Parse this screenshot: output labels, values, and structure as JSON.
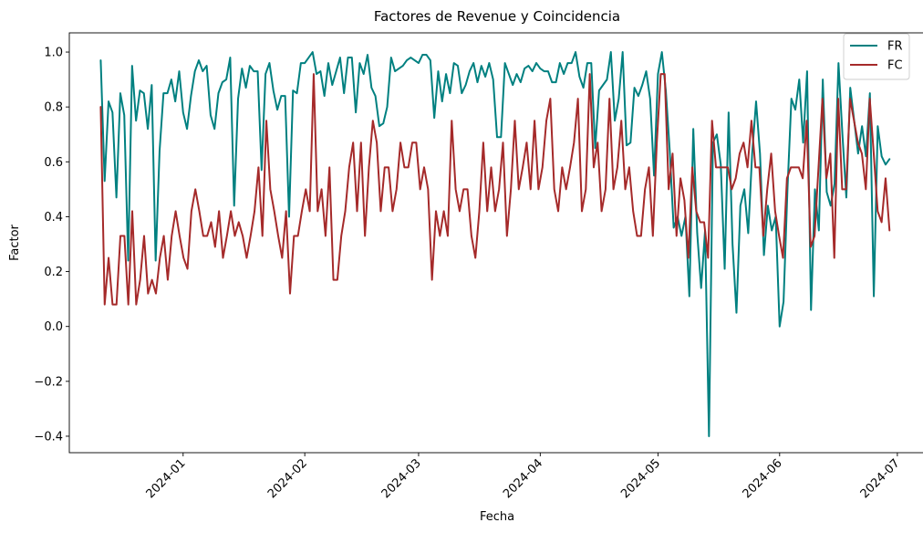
{
  "chart_data": {
    "type": "line",
    "title": "Factores de Revenue y Coincidencia",
    "xlabel": "Fecha",
    "ylabel": "Factor",
    "x_start": "2023-12-11",
    "x_end": "2024-06-29",
    "xlim": [
      "2023-12-03",
      "2024-07-08"
    ],
    "ylim": [
      -0.46,
      1.07
    ],
    "x_ticks": [
      "2024-01",
      "2024-02",
      "2024-03",
      "2024-04",
      "2024-05",
      "2024-06",
      "2024-07"
    ],
    "x_tick_dates": [
      "2024-01-01",
      "2024-02-01",
      "2024-03-01",
      "2024-04-01",
      "2024-05-01",
      "2024-06-01",
      "2024-07-01"
    ],
    "y_ticks": [
      -0.4,
      -0.2,
      0.0,
      0.2,
      0.4,
      0.6,
      0.8,
      1.0
    ],
    "y_tick_labels": [
      "−0.4",
      "−0.2",
      "0.0",
      "0.2",
      "0.4",
      "0.6",
      "0.8",
      "1.0"
    ],
    "grid": false,
    "legend_position": "top-right",
    "series": [
      {
        "name": "FR",
        "color": "#008080",
        "values": [
          0.97,
          0.53,
          0.82,
          0.78,
          0.47,
          0.85,
          0.77,
          0.24,
          0.95,
          0.75,
          0.86,
          0.85,
          0.72,
          0.88,
          0.24,
          0.64,
          0.85,
          0.85,
          0.9,
          0.82,
          0.93,
          0.78,
          0.72,
          0.84,
          0.93,
          0.97,
          0.93,
          0.95,
          0.77,
          0.72,
          0.85,
          0.89,
          0.9,
          0.98,
          0.44,
          0.83,
          0.94,
          0.87,
          0.95,
          0.93,
          0.93,
          0.57,
          0.92,
          0.96,
          0.86,
          0.79,
          0.84,
          0.84,
          0.4,
          0.86,
          0.85,
          0.96,
          0.96,
          0.98,
          1.0,
          0.92,
          0.93,
          0.84,
          0.96,
          0.88,
          0.93,
          0.98,
          0.85,
          0.98,
          0.98,
          0.78,
          0.96,
          0.92,
          0.99,
          0.87,
          0.84,
          0.73,
          0.74,
          0.8,
          0.98,
          0.93,
          0.94,
          0.95,
          0.97,
          0.98,
          0.97,
          0.96,
          0.99,
          0.99,
          0.97,
          0.76,
          0.93,
          0.82,
          0.92,
          0.85,
          0.96,
          0.95,
          0.85,
          0.88,
          0.93,
          0.96,
          0.89,
          0.95,
          0.91,
          0.96,
          0.9,
          0.69,
          0.69,
          0.96,
          0.92,
          0.88,
          0.92,
          0.89,
          0.94,
          0.95,
          0.93,
          0.96,
          0.94,
          0.93,
          0.93,
          0.89,
          0.89,
          0.96,
          0.92,
          0.96,
          0.96,
          1.0,
          0.91,
          0.87,
          0.96,
          0.96,
          0.65,
          0.86,
          0.88,
          0.9,
          1.0,
          0.75,
          0.83,
          1.0,
          0.66,
          0.67,
          0.87,
          0.84,
          0.88,
          0.93,
          0.83,
          0.55,
          0.92,
          1.0,
          0.86,
          0.64,
          0.36,
          0.4,
          0.33,
          0.4,
          0.11,
          0.72,
          0.34,
          0.14,
          0.35,
          -0.4,
          0.67,
          0.7,
          0.59,
          0.21,
          0.78,
          0.3,
          0.05,
          0.44,
          0.5,
          0.34,
          0.63,
          0.82,
          0.63,
          0.26,
          0.44,
          0.35,
          0.4,
          0.0,
          0.09,
          0.5,
          0.83,
          0.79,
          0.9,
          0.67,
          0.93,
          0.06,
          0.5,
          0.35,
          0.9,
          0.49,
          0.44,
          0.52,
          0.96,
          0.7,
          0.47,
          0.87,
          0.75,
          0.63,
          0.73,
          0.62,
          0.85,
          0.11,
          0.73,
          0.62,
          0.59,
          0.61
        ]
      },
      {
        "name": "FC",
        "color": "#A52A2A",
        "values": [
          0.8,
          0.08,
          0.25,
          0.08,
          0.08,
          0.33,
          0.33,
          0.08,
          0.42,
          0.08,
          0.17,
          0.33,
          0.12,
          0.17,
          0.12,
          0.25,
          0.33,
          0.17,
          0.33,
          0.42,
          0.33,
          0.25,
          0.21,
          0.42,
          0.5,
          0.42,
          0.33,
          0.33,
          0.38,
          0.29,
          0.42,
          0.25,
          0.33,
          0.42,
          0.33,
          0.38,
          0.33,
          0.25,
          0.33,
          0.42,
          0.58,
          0.33,
          0.75,
          0.5,
          0.42,
          0.33,
          0.25,
          0.42,
          0.12,
          0.33,
          0.33,
          0.42,
          0.5,
          0.42,
          0.92,
          0.42,
          0.5,
          0.33,
          0.58,
          0.17,
          0.17,
          0.33,
          0.42,
          0.58,
          0.67,
          0.42,
          0.67,
          0.33,
          0.58,
          0.75,
          0.67,
          0.42,
          0.58,
          0.58,
          0.42,
          0.5,
          0.67,
          0.58,
          0.58,
          0.67,
          0.67,
          0.5,
          0.58,
          0.5,
          0.17,
          0.42,
          0.33,
          0.42,
          0.33,
          0.75,
          0.5,
          0.42,
          0.5,
          0.5,
          0.33,
          0.25,
          0.42,
          0.67,
          0.42,
          0.58,
          0.42,
          0.5,
          0.67,
          0.33,
          0.5,
          0.75,
          0.5,
          0.58,
          0.67,
          0.5,
          0.75,
          0.5,
          0.58,
          0.75,
          0.83,
          0.5,
          0.42,
          0.58,
          0.5,
          0.58,
          0.67,
          0.83,
          0.42,
          0.5,
          0.92,
          0.58,
          0.67,
          0.42,
          0.5,
          0.83,
          0.5,
          0.58,
          0.75,
          0.5,
          0.58,
          0.42,
          0.33,
          0.33,
          0.5,
          0.58,
          0.33,
          0.67,
          0.92,
          0.92,
          0.5,
          0.63,
          0.33,
          0.54,
          0.46,
          0.25,
          0.58,
          0.42,
          0.38,
          0.38,
          0.25,
          0.75,
          0.58,
          0.58,
          0.58,
          0.58,
          0.5,
          0.54,
          0.63,
          0.67,
          0.58,
          0.75,
          0.58,
          0.58,
          0.33,
          0.5,
          0.63,
          0.42,
          0.33,
          0.25,
          0.54,
          0.58,
          0.58,
          0.58,
          0.54,
          0.75,
          0.29,
          0.33,
          0.58,
          0.83,
          0.54,
          0.63,
          0.25,
          0.83,
          0.5,
          0.5,
          0.83,
          0.75,
          0.67,
          0.63,
          0.5,
          0.83,
          0.63,
          0.42,
          0.38,
          0.54,
          0.35
        ]
      }
    ]
  }
}
